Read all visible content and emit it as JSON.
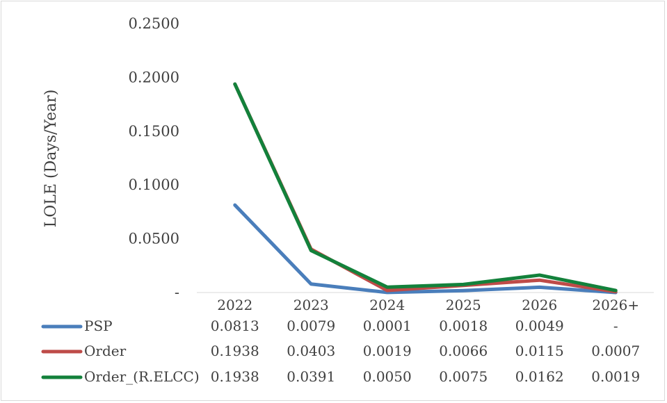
{
  "chart_data": {
    "type": "line",
    "ylabel": "LOLE (Days/Year)",
    "categories": [
      "2022",
      "2023",
      "2024",
      "2025",
      "2026",
      "2026+"
    ],
    "ylim": [
      0,
      0.25
    ],
    "y_ticks": [
      "-",
      "0.0500",
      "0.1000",
      "0.1500",
      "0.2000",
      "0.2500"
    ],
    "grid": false,
    "legend": "data-table-below",
    "series": [
      {
        "name": "PSP",
        "color": "#4a7ebb",
        "values": [
          0.0813,
          0.0079,
          0.0001,
          0.0018,
          0.0049,
          0
        ],
        "labels": [
          "0.0813",
          "0.0079",
          "0.0001",
          "0.0018",
          "0.0049",
          "-"
        ]
      },
      {
        "name": "Order",
        "color": "#be4b48",
        "values": [
          0.1938,
          0.0403,
          0.0019,
          0.0066,
          0.0115,
          0.0007
        ],
        "labels": [
          "0.1938",
          "0.0403",
          "0.0019",
          "0.0066",
          "0.0115",
          "0.0007"
        ]
      },
      {
        "name": "Order_(R.ELCC)",
        "color": "#13813b",
        "values": [
          0.1938,
          0.0391,
          0.005,
          0.0075,
          0.0162,
          0.0019
        ],
        "labels": [
          "0.1938",
          "0.0391",
          "0.0050",
          "0.0075",
          "0.0162",
          "0.0019"
        ]
      }
    ]
  }
}
